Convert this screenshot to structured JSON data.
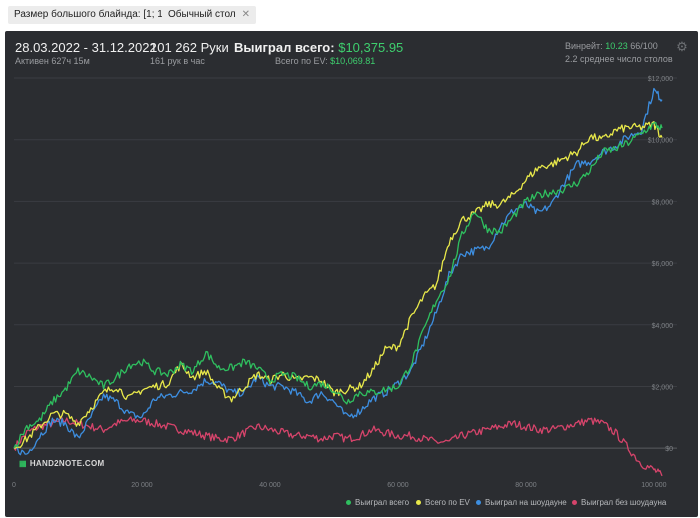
{
  "filters": [
    {
      "label": "Размер большого блайнда: [1; 1]"
    },
    {
      "label": "Обычный стол"
    }
  ],
  "close_glyph": "✕",
  "summary": {
    "date_range": "28.03.2022 - 31.12.2022",
    "active": "Активен 627ч 15м",
    "hands": "101 262 Руки",
    "hands_per_hour": "161 рук в час",
    "won_label": "Выиграл всего:",
    "won_value": "$10,375.95",
    "ev_label": "Всего по EV:",
    "ev_value": "$10,069.81",
    "winrate_label": "Винрейт:",
    "winrate_value": "10.23",
    "winrate_suffix": "66/100",
    "tables": "2.2 среднее число столов"
  },
  "settings_icon": "gear-icon",
  "watermark": "HAND2NOTE.COM",
  "chart_data": {
    "type": "line",
    "xlim": [
      0,
      101262
    ],
    "ylim": [
      -1000,
      12000
    ],
    "x_ticks": [
      0,
      20000,
      40000,
      60000,
      80000,
      100000
    ],
    "x_tick_labels": [
      "0",
      "20 000",
      "40 000",
      "60 000",
      "80 000",
      "100 000"
    ],
    "y_ticks": [
      0,
      2000,
      4000,
      6000,
      8000,
      10000,
      12000
    ],
    "y_tick_labels": [
      "$0",
      "$2,000",
      "$4,000",
      "$6,000",
      "$8,000",
      "$10,000",
      "$12,000"
    ],
    "grid": "horizontal",
    "legend_position": "bottom-right",
    "x": [
      0,
      2000,
      4000,
      6000,
      8000,
      10000,
      12000,
      14000,
      16000,
      18000,
      20000,
      22000,
      24000,
      26000,
      28000,
      30000,
      32000,
      34000,
      36000,
      38000,
      40000,
      42000,
      44000,
      46000,
      48000,
      50000,
      52000,
      54000,
      56000,
      58000,
      60000,
      62000,
      64000,
      66000,
      68000,
      70000,
      72000,
      74000,
      76000,
      78000,
      80000,
      82000,
      84000,
      86000,
      88000,
      90000,
      92000,
      94000,
      96000,
      98000,
      100000,
      101262
    ],
    "series": [
      {
        "name": "Выиграл всего",
        "color": "#2fbf5f",
        "values": [
          0,
          700,
          900,
          1500,
          1900,
          2500,
          2300,
          2000,
          2300,
          2700,
          2800,
          2500,
          2400,
          2700,
          2500,
          3100,
          2600,
          2600,
          2800,
          2600,
          2200,
          2400,
          2300,
          2000,
          2100,
          1900,
          1500,
          1800,
          1800,
          1900,
          2000,
          2700,
          3800,
          4800,
          5500,
          6900,
          7700,
          7100,
          7000,
          7500,
          8000,
          8200,
          8300,
          8400,
          8600,
          9000,
          9600,
          9700,
          9900,
          10200,
          10500,
          10376
        ]
      },
      {
        "name": "Всего по EV",
        "color": "#e8e84a",
        "values": [
          0,
          300,
          700,
          1100,
          1100,
          800,
          1300,
          1800,
          2000,
          1600,
          1900,
          2000,
          2100,
          2700,
          2300,
          2500,
          1900,
          1600,
          2000,
          2400,
          2200,
          2400,
          2200,
          2300,
          2200,
          1800,
          1900,
          2000,
          2500,
          3200,
          3300,
          4200,
          4900,
          5300,
          6700,
          7400,
          7600,
          7900,
          7900,
          8200,
          8700,
          9100,
          9200,
          9400,
          9600,
          10100,
          10000,
          10300,
          10400,
          10400,
          10500,
          10070
        ]
      },
      {
        "name": "Выиграл на шоудауне",
        "color": "#3d8ee0",
        "values": [
          0,
          -200,
          400,
          900,
          800,
          300,
          1000,
          1700,
          1500,
          1100,
          1000,
          1600,
          1700,
          1800,
          1900,
          2200,
          2100,
          1800,
          1800,
          2300,
          2000,
          2000,
          1800,
          1500,
          1800,
          1500,
          1000,
          1200,
          1600,
          1800,
          2100,
          2500,
          3400,
          4400,
          5600,
          6300,
          6400,
          6500,
          7200,
          7700,
          7900,
          7600,
          7900,
          8600,
          9200,
          9300,
          9600,
          9800,
          10100,
          10300,
          11600,
          11300
        ]
      },
      {
        "name": "Выиграл без шоудауна",
        "color": "#d6446b",
        "values": [
          0,
          500,
          700,
          800,
          900,
          800,
          700,
          600,
          800,
          900,
          900,
          800,
          700,
          600,
          500,
          400,
          300,
          300,
          500,
          700,
          600,
          500,
          400,
          400,
          300,
          400,
          300,
          400,
          600,
          500,
          400,
          400,
          300,
          200,
          200,
          400,
          500,
          600,
          700,
          800,
          700,
          600,
          600,
          700,
          800,
          900,
          800,
          500,
          0,
          -500,
          -700,
          -900
        ]
      }
    ]
  }
}
